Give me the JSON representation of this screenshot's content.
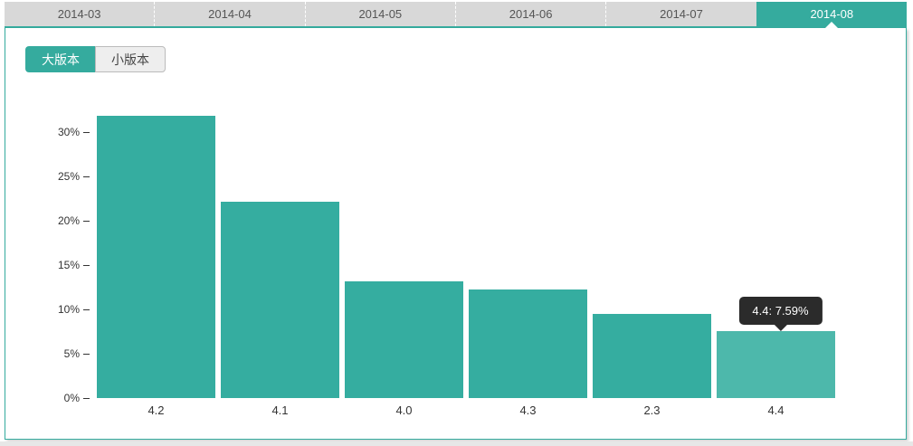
{
  "tabs": {
    "items": [
      "2014-03",
      "2014-04",
      "2014-05",
      "2014-06",
      "2014-07",
      "2014-08"
    ],
    "active_index": 5
  },
  "toggle": {
    "options": [
      {
        "label": "大版本",
        "active": true
      },
      {
        "label": "小版本",
        "active": false
      }
    ]
  },
  "tooltip": {
    "text": "4.4: 7.59%"
  },
  "chart_data": {
    "type": "bar",
    "categories": [
      "4.2",
      "4.1",
      "4.0",
      "4.3",
      "2.3",
      "4.4"
    ],
    "values": [
      31.8,
      22.1,
      13.2,
      12.2,
      9.5,
      7.59
    ],
    "unit": "%",
    "title": "",
    "xlabel": "",
    "ylabel": "",
    "y_ticks": [
      "0%",
      "5%",
      "10%",
      "15%",
      "20%",
      "25%",
      "30%"
    ],
    "ylim": [
      0,
      32
    ],
    "grid": false,
    "legend": false,
    "highlighted_index": 5,
    "highlight_label": "4.4: 7.59%"
  },
  "colors": {
    "accent": "#35ab9e",
    "bar": "#35ada0",
    "bar_highlight": "#4db8ab",
    "tabbar_bg": "#d8d8d8",
    "tooltip_bg": "#2b2b2b"
  }
}
